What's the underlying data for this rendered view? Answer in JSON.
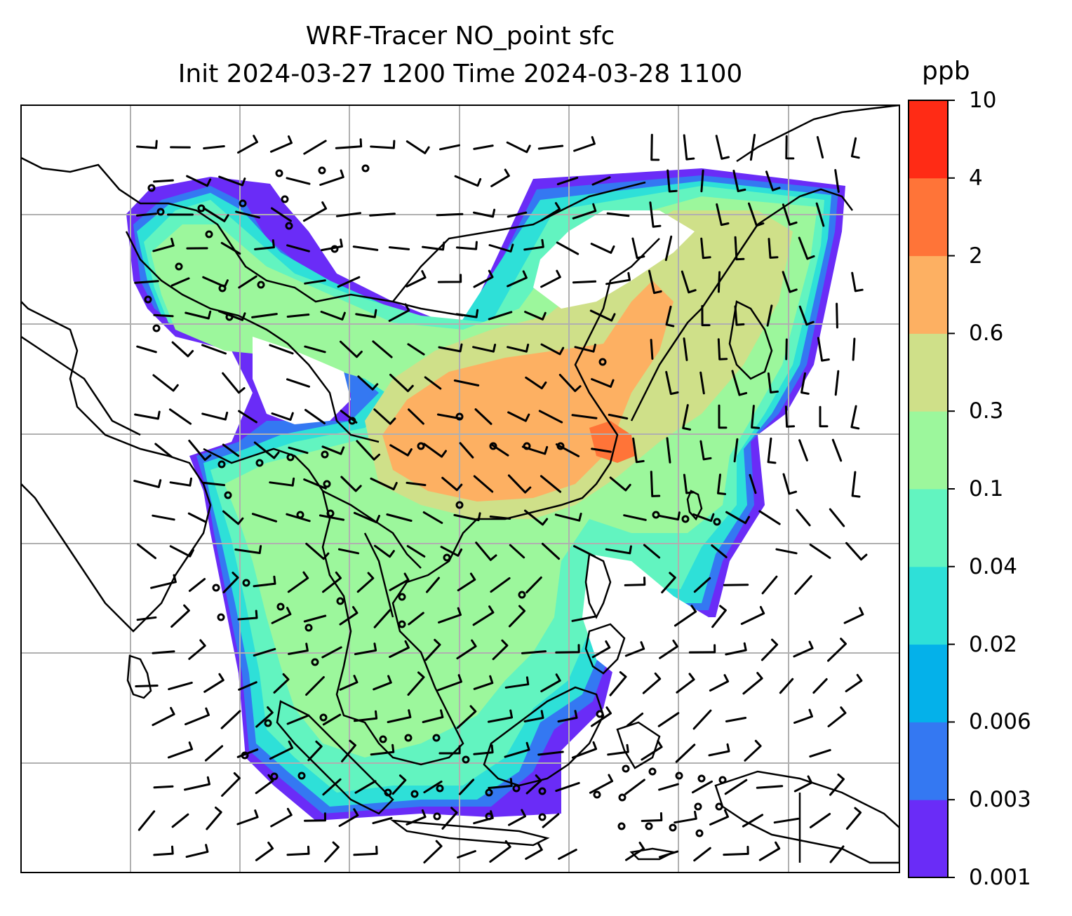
{
  "title": {
    "line1": "WRF-Tracer NO_point sfc",
    "line2": "Init 2024-03-27 1200 Time 2024-03-28 1100"
  },
  "colorbar": {
    "unit": "ppb",
    "levels": [
      "0.001",
      "0.003",
      "0.006",
      "0.02",
      "0.04",
      "0.1",
      "0.3",
      "0.6",
      "2",
      "4",
      "10"
    ],
    "colors": [
      "#6a2cf7",
      "#3478f2",
      "#04b1ea",
      "#2ee0d8",
      "#62f4c0",
      "#9cf79c",
      "#cfe089",
      "#fdb062",
      "#ff7438",
      "#ff2b15"
    ]
  },
  "map": {
    "gridline_color": "#b0b0b0",
    "coastline_color": "#000000"
  }
}
